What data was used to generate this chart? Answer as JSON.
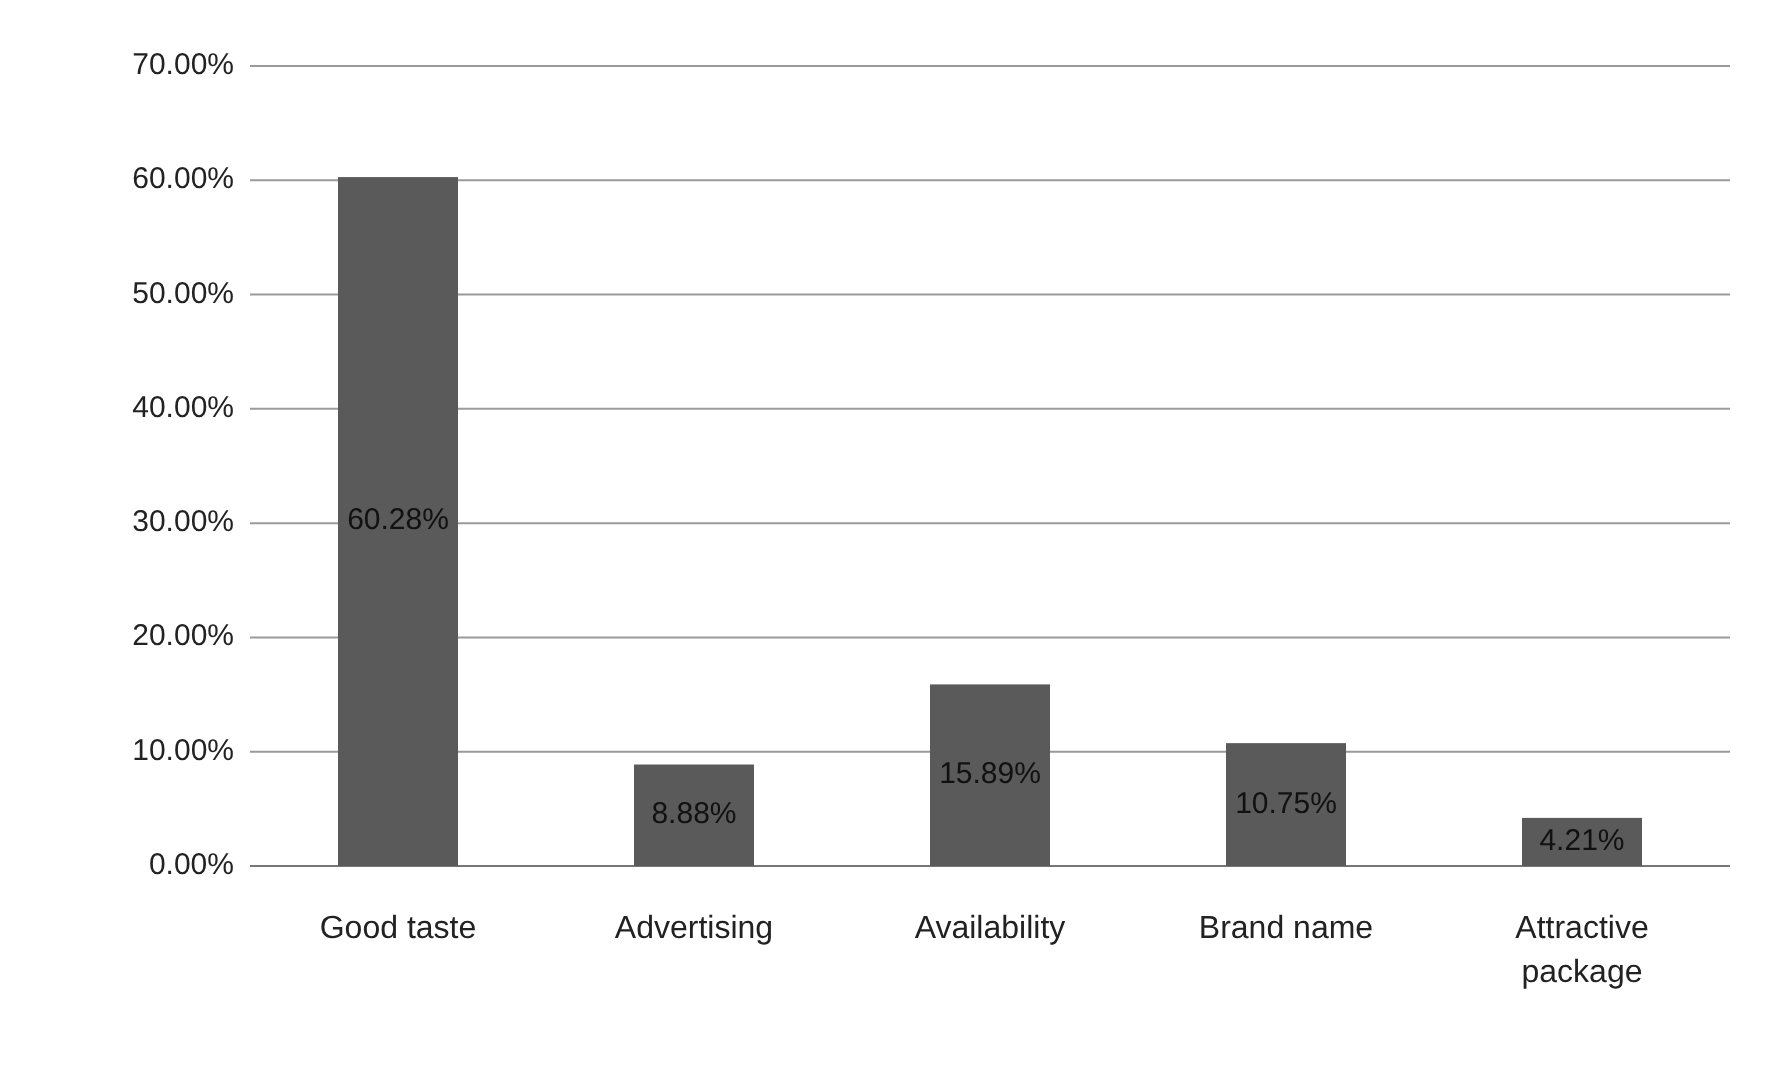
{
  "chart_data": {
    "type": "bar",
    "categories": [
      "Good taste",
      "Advertising",
      "Availability",
      "Brand name",
      "Attractive package"
    ],
    "values": [
      60.28,
      8.88,
      15.89,
      10.75,
      4.21
    ],
    "value_labels": [
      "60.28%",
      "8.88%",
      "15.89%",
      "10.75%",
      "4.21%"
    ],
    "color": "#5a5a5a",
    "ylim": [
      0,
      70
    ],
    "yticks": [
      {
        "value": 0,
        "label": "0.00%"
      },
      {
        "value": 10,
        "label": "10.00%"
      },
      {
        "value": 20,
        "label": "20.00%"
      },
      {
        "value": 30,
        "label": "30.00%"
      },
      {
        "value": 40,
        "label": "40.00%"
      },
      {
        "value": 50,
        "label": "50.00%"
      },
      {
        "value": 60,
        "label": "60.00%"
      },
      {
        "value": 70,
        "label": "70.00%"
      }
    ],
    "grid": "y"
  }
}
